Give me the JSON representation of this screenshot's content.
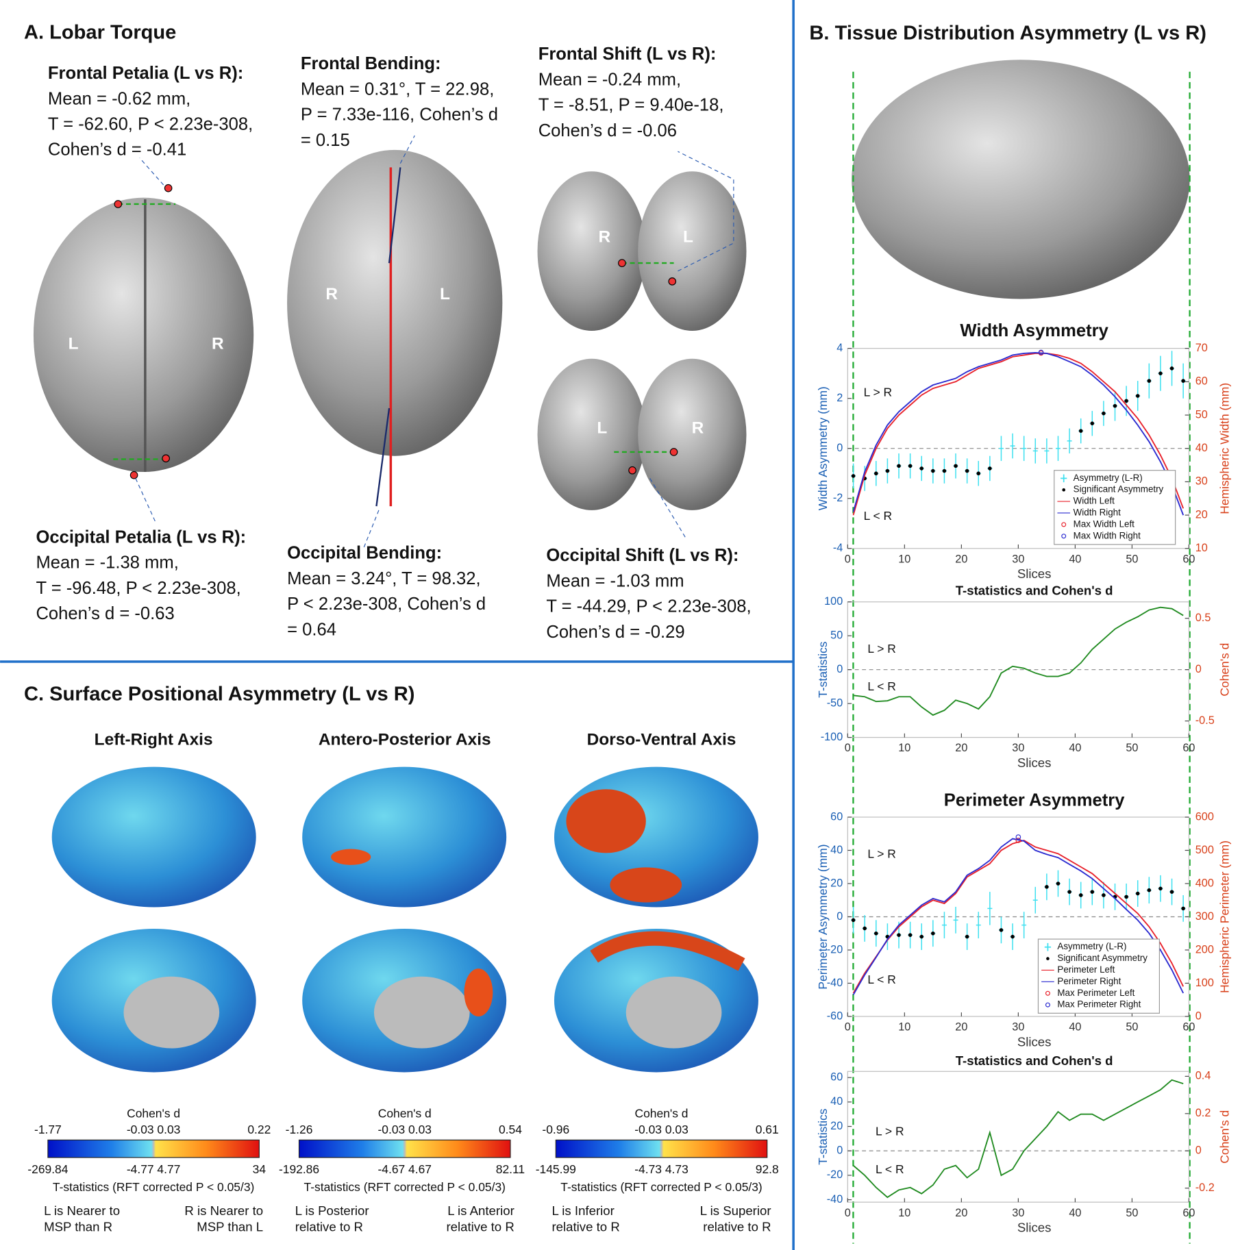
{
  "panel_a": {
    "title": "A. Lobar Torque",
    "annotations": [
      {
        "heading": "Frontal Petalia (L vs R):",
        "lines": [
          "Mean = -0.62 mm,",
          "T = -62.60, P < 2.23e-308,",
          "Cohen’s d = -0.41"
        ]
      },
      {
        "heading": "Frontal Bending:",
        "lines": [
          "Mean = 0.31°, T = 22.98,",
          "P = 7.33e-116, Cohen’s d",
          "= 0.15"
        ]
      },
      {
        "heading": "Frontal Shift (L vs R):",
        "lines": [
          "Mean = -0.24 mm,",
          "T = -8.51, P = 9.40e-18,",
          "Cohen’s d = -0.06"
        ]
      },
      {
        "heading": "Occipital Petalia (L vs R):",
        "lines": [
          "Mean = -1.38 mm,",
          "T = -96.48, P < 2.23e-308,",
          "Cohen’s d = -0.63"
        ]
      },
      {
        "heading": "Occipital Bending:",
        "lines": [
          "Mean = 3.24°, T = 98.32,",
          "P < 2.23e-308, Cohen’s d",
          "= 0.64"
        ]
      },
      {
        "heading": "Occipital Shift (L vs R):",
        "lines": [
          "Mean = -1.03 mm",
          "T = -44.29, P < 2.23e-308,",
          "Cohen’s d = -0.29"
        ]
      }
    ],
    "brain_labels": [
      "L",
      "R",
      "R",
      "L",
      "R",
      "L",
      "L",
      "R"
    ]
  },
  "panel_b": {
    "title": "B. Tissue Distribution Asymmetry (L vs R)"
  },
  "chart_data": [
    {
      "type": "line",
      "title": "Width Asymmetry",
      "xlabel": "Slices",
      "ylabel": "Width Asymmetry (mm)",
      "y2label": "Hemispheric Width (mm)",
      "xlim": [
        0,
        60
      ],
      "xticks": [
        0,
        10,
        20,
        30,
        40,
        50,
        60
      ],
      "ylim": [
        -4,
        4
      ],
      "yticks": [
        -4,
        -2,
        0,
        2,
        4
      ],
      "y2lim": [
        10,
        70
      ],
      "y2ticks": [
        10,
        20,
        30,
        40,
        50,
        60,
        70
      ],
      "annotations": [
        "L > R",
        "L < R"
      ],
      "legend": "lower right",
      "x": [
        1,
        3,
        5,
        7,
        9,
        11,
        13,
        15,
        17,
        19,
        21,
        23,
        25,
        27,
        29,
        31,
        33,
        35,
        37,
        39,
        41,
        43,
        45,
        47,
        49,
        51,
        53,
        55,
        57,
        59
      ],
      "series": [
        {
          "name": "Asymmetry (L-R)",
          "style": "errorbar",
          "color": "#3fe0f0",
          "values": [
            -1.1,
            -1.2,
            -1.0,
            -0.9,
            -0.7,
            -0.7,
            -0.8,
            -0.9,
            -0.9,
            -0.7,
            -0.9,
            -1.0,
            -0.8,
            0.0,
            0.1,
            0.0,
            -0.1,
            -0.1,
            0.0,
            0.3,
            0.7,
            1.0,
            1.4,
            1.7,
            1.9,
            2.1,
            2.7,
            3.0,
            3.2,
            2.7
          ],
          "errors": [
            0.5,
            0.5,
            0.5,
            0.5,
            0.5,
            0.5,
            0.5,
            0.5,
            0.5,
            0.5,
            0.5,
            0.5,
            0.5,
            0.5,
            0.5,
            0.5,
            0.5,
            0.5,
            0.5,
            0.5,
            0.5,
            0.5,
            0.5,
            0.6,
            0.6,
            0.6,
            0.7,
            0.7,
            0.7,
            0.7
          ]
        },
        {
          "name": "Significant Asymmetry",
          "style": "points",
          "color": "#000000",
          "values": [
            -1.1,
            -1.2,
            -1.0,
            -0.9,
            -0.7,
            -0.7,
            -0.8,
            -0.9,
            -0.9,
            -0.7,
            -0.9,
            -1.0,
            -0.8,
            null,
            null,
            null,
            null,
            null,
            null,
            null,
            0.7,
            1.0,
            1.4,
            1.7,
            1.9,
            2.1,
            2.7,
            3.0,
            3.2,
            2.7
          ]
        },
        {
          "name": "Width Left",
          "style": "line",
          "axis": "y2",
          "color": "#e8202a",
          "values": [
            20,
            32,
            40,
            46,
            50,
            53,
            56,
            58,
            59,
            60,
            62,
            64,
            65,
            66,
            67.5,
            68,
            68.5,
            68.5,
            68,
            67,
            65.5,
            63,
            60,
            57,
            53,
            49,
            44,
            38,
            31,
            22
          ]
        },
        {
          "name": "Width Right",
          "style": "line",
          "axis": "y2",
          "color": "#2a2ad0",
          "values": [
            21,
            33,
            41,
            47,
            51,
            54,
            57,
            59,
            60,
            61,
            63,
            64.5,
            65.5,
            66.5,
            68,
            68.5,
            68.7,
            68.5,
            67.5,
            66,
            64.5,
            62,
            59,
            55.5,
            51.5,
            47,
            42,
            36,
            29,
            20
          ]
        },
        {
          "name": "Max Width Left",
          "style": "circle",
          "axis": "y2",
          "color": "#e8202a",
          "x": [
            34
          ],
          "values": [
            68.6
          ]
        },
        {
          "name": "Max Width Right",
          "style": "circle",
          "axis": "y2",
          "color": "#2a2ad0",
          "x": [
            34
          ],
          "values": [
            68.8
          ]
        }
      ]
    },
    {
      "type": "line",
      "title": "T-statistics and Cohen's d",
      "xlabel": "Slices",
      "ylabel": "T-statistics",
      "y2label": "Cohen's d",
      "xlim": [
        0,
        60
      ],
      "xticks": [
        0,
        10,
        20,
        30,
        40,
        50,
        60
      ],
      "ylim": [
        -100,
        100
      ],
      "yticks": [
        -100,
        -50,
        0,
        50,
        100
      ],
      "y2lim": [
        -0.66,
        0.66
      ],
      "y2ticks": [
        -0.5,
        0,
        0.5
      ],
      "annotations": [
        "L > R",
        "L < R"
      ],
      "x": [
        1,
        3,
        5,
        7,
        9,
        11,
        13,
        15,
        17,
        19,
        21,
        23,
        25,
        27,
        29,
        31,
        33,
        35,
        37,
        39,
        41,
        43,
        45,
        47,
        49,
        51,
        53,
        55,
        57,
        59
      ],
      "series": [
        {
          "style": "line",
          "color": "#1f8a1f",
          "values": [
            -38,
            -40,
            -47,
            -46,
            -40,
            -40,
            -55,
            -67,
            -60,
            -45,
            -50,
            -58,
            -40,
            -5,
            5,
            2,
            -5,
            -10,
            -10,
            -5,
            10,
            30,
            45,
            60,
            70,
            78,
            88,
            92,
            90,
            80
          ]
        }
      ]
    },
    {
      "type": "line",
      "title": "Perimeter Asymmetry",
      "xlabel": "Slices",
      "ylabel": "Perimeter Asymmetry (mm)",
      "y2label": "Hemispheric Perimeter (mm)",
      "xlim": [
        0,
        60
      ],
      "xticks": [
        0,
        10,
        20,
        30,
        40,
        50,
        60
      ],
      "ylim": [
        -60,
        60
      ],
      "yticks": [
        -60,
        -40,
        -20,
        0,
        20,
        40,
        60
      ],
      "y2lim": [
        0,
        600
      ],
      "y2ticks": [
        0,
        100,
        200,
        300,
        400,
        500,
        600
      ],
      "annotations": [
        "L > R",
        "L < R"
      ],
      "legend": "lower right",
      "x": [
        1,
        3,
        5,
        7,
        9,
        11,
        13,
        15,
        17,
        19,
        21,
        23,
        25,
        27,
        29,
        31,
        33,
        35,
        37,
        39,
        41,
        43,
        45,
        47,
        49,
        51,
        53,
        55,
        57,
        59
      ],
      "series": [
        {
          "name": "Asymmetry (L-R)",
          "style": "errorbar",
          "color": "#3fe0f0",
          "values": [
            -2,
            -7,
            -10,
            -12,
            -11,
            -11,
            -12,
            -10,
            -5,
            -2,
            -12,
            -5,
            5,
            -8,
            -12,
            -5,
            10,
            18,
            20,
            15,
            13,
            15,
            13,
            12,
            12,
            14,
            16,
            17,
            15,
            5
          ],
          "errors": [
            8,
            8,
            8,
            8,
            8,
            8,
            8,
            8,
            8,
            8,
            8,
            8,
            10,
            8,
            8,
            8,
            8,
            8,
            8,
            8,
            8,
            8,
            8,
            8,
            8,
            8,
            8,
            8,
            8,
            8
          ]
        },
        {
          "name": "Significant Asymmetry",
          "style": "points",
          "color": "#000000",
          "values": [
            -2,
            -7,
            -10,
            -12,
            -11,
            -11,
            -12,
            -10,
            null,
            null,
            -12,
            null,
            null,
            -8,
            -12,
            null,
            null,
            18,
            20,
            15,
            13,
            15,
            13,
            12,
            12,
            14,
            16,
            17,
            15,
            5
          ]
        },
        {
          "name": "Perimeter Left",
          "style": "line",
          "axis": "y2",
          "color": "#e8202a",
          "values": [
            70,
            130,
            180,
            230,
            270,
            300,
            330,
            350,
            340,
            370,
            420,
            440,
            460,
            500,
            520,
            530,
            510,
            500,
            490,
            470,
            450,
            430,
            400,
            370,
            340,
            310,
            270,
            220,
            160,
            90
          ]
        },
        {
          "name": "Perimeter Right",
          "style": "line",
          "axis": "y2",
          "color": "#2a2ad0",
          "values": [
            65,
            125,
            178,
            232,
            275,
            305,
            335,
            355,
            345,
            375,
            425,
            445,
            470,
            510,
            535,
            528,
            500,
            488,
            478,
            458,
            438,
            415,
            385,
            355,
            322,
            290,
            250,
            200,
            140,
            70
          ]
        },
        {
          "name": "Max Perimeter Left",
          "style": "circle",
          "axis": "y2",
          "color": "#e8202a",
          "x": [
            30
          ],
          "values": [
            530
          ]
        },
        {
          "name": "Max Perimeter Right",
          "style": "circle",
          "axis": "y2",
          "color": "#2a2ad0",
          "x": [
            30
          ],
          "values": [
            540
          ]
        }
      ]
    },
    {
      "type": "line",
      "title": "T-statistics and Cohen's d",
      "xlabel": "Slices",
      "ylabel": "T-statistics",
      "y2label": "Cohen's d",
      "xlim": [
        0,
        60
      ],
      "xticks": [
        0,
        10,
        20,
        30,
        40,
        50,
        60
      ],
      "ylim": [
        -42,
        65
      ],
      "yticks": [
        -40,
        -20,
        0,
        20,
        40,
        60
      ],
      "y2lim": [
        -0.2754,
        0.4262
      ],
      "y2ticks": [
        -0.2,
        0,
        0.2,
        0.4
      ],
      "annotations": [
        "L > R",
        "L < R"
      ],
      "x": [
        1,
        3,
        5,
        7,
        9,
        11,
        13,
        15,
        17,
        19,
        21,
        23,
        25,
        27,
        29,
        31,
        33,
        35,
        37,
        39,
        41,
        43,
        45,
        47,
        49,
        51,
        53,
        55,
        57,
        59
      ],
      "series": [
        {
          "style": "line",
          "color": "#1f8a1f",
          "values": [
            -12,
            -20,
            -30,
            -38,
            -32,
            -30,
            -35,
            -28,
            -15,
            -12,
            -22,
            -15,
            15,
            -20,
            -15,
            0,
            10,
            20,
            32,
            25,
            30,
            30,
            25,
            30,
            35,
            40,
            45,
            50,
            58,
            55
          ]
        }
      ]
    }
  ],
  "panel_c": {
    "title": "C. Surface Positional Asymmetry (L vs R)",
    "columns": [
      {
        "title": "Left-Right Axis",
        "d_label": "Cohen's d",
        "d_min": "-1.77",
        "d_mid": "-0.03 0.03",
        "d_max": "0.22",
        "t_min": "-269.84",
        "t_mid": "-4.77 4.77",
        "t_max": "34",
        "t_label": "T-statistics (RFT corrected P < 0.05/3)",
        "note_left": [
          "L is Nearer to",
          "MSP than R"
        ],
        "note_right": [
          "R is Nearer to",
          "MSP than L"
        ]
      },
      {
        "title": "Antero-Posterior Axis",
        "d_label": "Cohen's d",
        "d_min": "-1.26",
        "d_mid": "-0.03 0.03",
        "d_max": "0.54",
        "t_min": "-192.86",
        "t_mid": "-4.67 4.67",
        "t_max": "82.11",
        "t_label": "T-statistics (RFT corrected P < 0.05/3)",
        "note_left": [
          "L is Posterior",
          "relative to R"
        ],
        "note_right": [
          "L is Anterior",
          "relative to R"
        ]
      },
      {
        "title": "Dorso-Ventral Axis",
        "d_label": "Cohen's d",
        "d_min": "-0.96",
        "d_mid": "-0.03 0.03",
        "d_max": "0.61",
        "t_min": "-145.99",
        "t_mid": "-4.73 4.73",
        "t_max": "92.8",
        "t_label": "T-statistics (RFT corrected P < 0.05/3)",
        "note_left": [
          "L is Inferior",
          "relative to R"
        ],
        "note_right": [
          "L is Superior",
          "relative to R"
        ]
      }
    ]
  }
}
